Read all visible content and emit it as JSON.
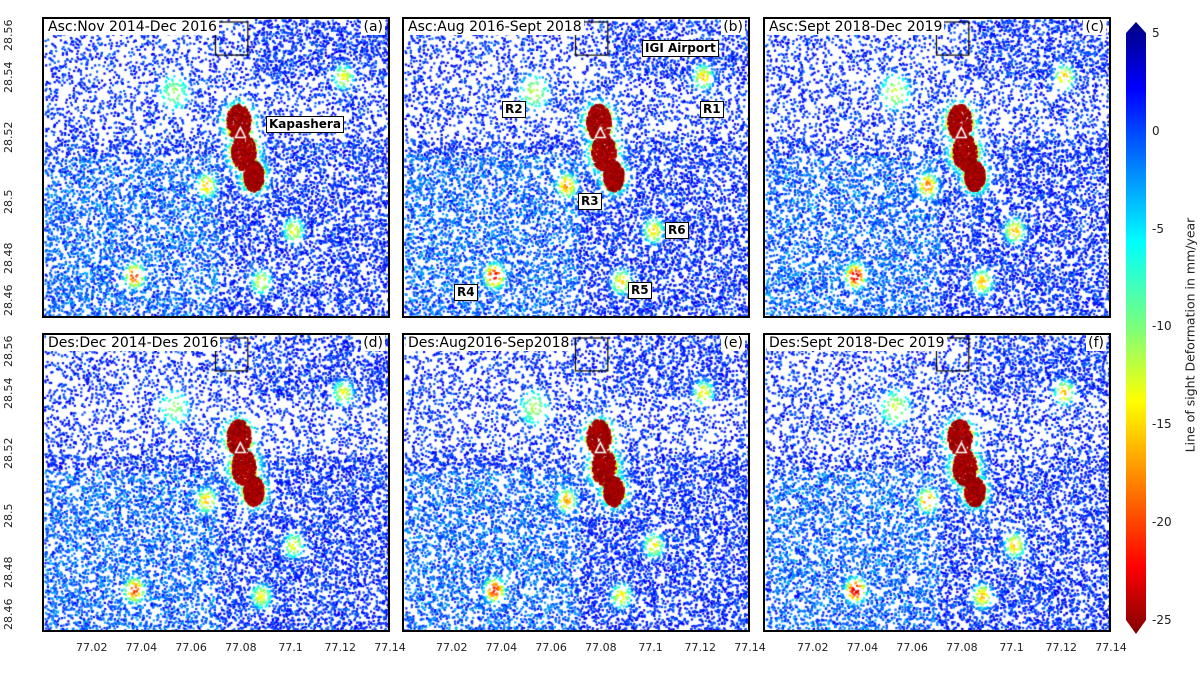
{
  "panels": [
    {
      "id": "a",
      "title": "Asc:Nov 2014-Dec 2016",
      "letter": "(a)",
      "tags": [
        {
          "text": "Kapashera"
        }
      ],
      "intensity": 1.0
    },
    {
      "id": "b",
      "title": "Asc:Aug 2016-Sept 2018",
      "letter": "(b)",
      "tags": [
        {
          "text": "IGI Airport"
        },
        {
          "text": "R1"
        },
        {
          "text": "R2"
        },
        {
          "text": "R3"
        },
        {
          "text": "R4"
        },
        {
          "text": "R5"
        },
        {
          "text": "R6"
        }
      ],
      "intensity": 1.1
    },
    {
      "id": "c",
      "title": "Asc:Sept 2018-Dec 2019",
      "letter": "(c)",
      "tags": [],
      "intensity": 1.15
    },
    {
      "id": "d",
      "title": "Des:Dec 2014-Des 2016",
      "letter": "(d)",
      "tags": [],
      "intensity": 1.0
    },
    {
      "id": "e",
      "title": "Des:Aug2016-Sep2018",
      "letter": "(e)",
      "tags": [],
      "intensity": 1.05
    },
    {
      "id": "f",
      "title": "Des:Sept 2018-Dec 2019",
      "letter": "(f)",
      "tags": [],
      "intensity": 1.15
    }
  ],
  "axes": {
    "lon_range": [
      77.0,
      77.14
    ],
    "lat_range": [
      28.46,
      28.56
    ],
    "x_ticks": [
      "77.02",
      "77.04",
      "77.06",
      "77.08",
      "77.1",
      "77.12",
      "77.14"
    ],
    "y_ticks": [
      "28.56",
      "28.54",
      "28.52",
      "28.5",
      "28.48",
      "28.46"
    ]
  },
  "colorbar": {
    "title": "Line of sight Deformation in mm/year",
    "range": [
      -25,
      5
    ],
    "colormap": "jet",
    "ticks": [
      "5",
      "0",
      "-5",
      "-10",
      "-15",
      "-20",
      "-25"
    ],
    "extend": "both"
  },
  "subsidence_zones": [
    {
      "name": "Kapashera",
      "lon": 77.078,
      "lat": 28.526,
      "value": -25,
      "radius": 0.006
    },
    {
      "name": "Kapashera",
      "lon": 77.08,
      "lat": 28.516,
      "value": -25,
      "radius": 0.006
    },
    {
      "name": "Kapashera",
      "lon": 77.084,
      "lat": 28.508,
      "value": -25,
      "radius": 0.005
    },
    {
      "name": "R1",
      "lon": 77.12,
      "lat": 28.541,
      "value": -14,
      "radius": 0.004
    },
    {
      "name": "R2",
      "lon": 77.052,
      "lat": 28.536,
      "value": -11,
      "radius": 0.006
    },
    {
      "name": "R3",
      "lon": 77.065,
      "lat": 28.505,
      "value": -16,
      "radius": 0.004
    },
    {
      "name": "R4",
      "lon": 77.036,
      "lat": 28.475,
      "value": -20,
      "radius": 0.004
    },
    {
      "name": "R5",
      "lon": 77.087,
      "lat": 28.473,
      "value": -14,
      "radius": 0.004
    },
    {
      "name": "R6",
      "lon": 77.1,
      "lat": 28.49,
      "value": -14,
      "radius": 0.004
    }
  ],
  "airport_box": {
    "lon": [
      77.069,
      77.082
    ],
    "lat": [
      28.548,
      28.559
    ]
  }
}
